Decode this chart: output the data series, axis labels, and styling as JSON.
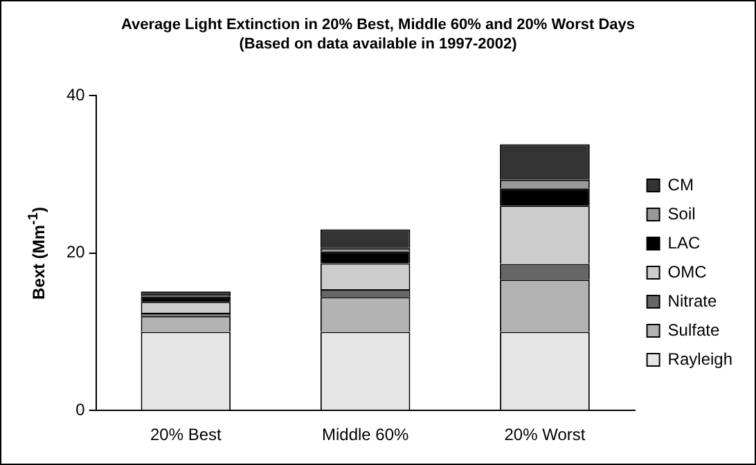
{
  "chart_data": {
    "type": "bar",
    "stacked": true,
    "title": "Average Light Extinction in 20% Best, Middle 60% and 20% Worst Days",
    "subtitle": "(Based on data available in 1997-2002)",
    "ylabel": "Bext (Mm$^{-1}$)",
    "categories": [
      "20% Best",
      "Middle 60%",
      "20% Worst"
    ],
    "ylim": [
      0,
      40
    ],
    "yticks": [
      0,
      20,
      40
    ],
    "grid": false,
    "legend": "right",
    "series": [
      {
        "name": "Rayleigh",
        "color": "#e6e6e6",
        "values": [
          10,
          10,
          10
        ]
      },
      {
        "name": "Sulfate",
        "color": "#b3b3b3",
        "values": [
          2,
          4.4,
          6.6
        ]
      },
      {
        "name": "Nitrate",
        "color": "#666666",
        "values": [
          0.4,
          1,
          2
        ]
      },
      {
        "name": "OMC",
        "color": "#cccccc",
        "values": [
          1.4,
          3.3,
          7.4
        ]
      },
      {
        "name": "LAC",
        "color": "#000000",
        "values": [
          0.7,
          1.5,
          2.2
        ]
      },
      {
        "name": "Soil",
        "color": "#999999",
        "values": [
          0.2,
          0.4,
          1.1
        ]
      },
      {
        "name": "CM",
        "color": "#333333",
        "values": [
          0.4,
          2.4,
          4.5
        ]
      }
    ]
  }
}
